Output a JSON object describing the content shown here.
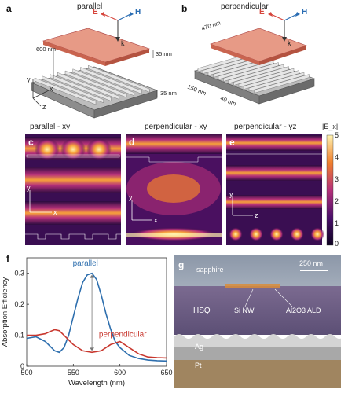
{
  "panels": {
    "a": {
      "label": "a",
      "title": "parallel",
      "dim_600": "600 nm",
      "dim_35_top": "35 nm",
      "dim_35_bottom": "35 nm",
      "axes": [
        "y",
        "x",
        "z"
      ]
    },
    "b": {
      "label": "b",
      "title": "perpendicular",
      "dim_470": "470 nm",
      "dim_150": "150 nm",
      "dim_40": "40 nm"
    },
    "field_e": "E",
    "field_h": "H",
    "field_k_a": "k",
    "field_k_b": "k",
    "c": {
      "label": "c",
      "title": "parallel - xy",
      "axis_y": "y",
      "axis_x": "x"
    },
    "d": {
      "label": "d",
      "title": "perpendicular - xy",
      "axis_y": "y",
      "axis_x": "x"
    },
    "e": {
      "label": "e",
      "title": "perpendicular - yz",
      "axis_y": "y",
      "axis_z": "z"
    },
    "colorbar": {
      "label": "|E_x|",
      "ticks": [
        "5",
        "4",
        "3",
        "2",
        "1",
        "0"
      ]
    },
    "f": {
      "label": "f"
    },
    "g": {
      "label": "g",
      "sapphire": "sapphire",
      "scalebar": "250 nm",
      "hsq": "HSQ",
      "si_nw": "Si NW",
      "ald": "Al2O3 ALD",
      "ag": "Ag",
      "pt": "Pt"
    }
  },
  "colors": {
    "accent_red": "#d6453c",
    "accent_blue": "#2a6db3",
    "line_parallel": "#2e6fae",
    "line_perp": "#c8372e"
  },
  "chart_data": {
    "type": "line",
    "xlabel": "Wavelength (nm)",
    "ylabel": "Absorption Efficiency",
    "xlim": [
      500,
      650
    ],
    "ylim": [
      0,
      0.35
    ],
    "xticks": [
      500,
      550,
      600,
      650
    ],
    "yticks": [
      0,
      0.1,
      0.2,
      0.3
    ],
    "series": [
      {
        "name": "parallel",
        "x": [
          500,
          510,
          520,
          530,
          535,
          540,
          545,
          550,
          555,
          560,
          565,
          570,
          575,
          580,
          585,
          590,
          595,
          600,
          610,
          620,
          630,
          640,
          650
        ],
        "y": [
          0.09,
          0.095,
          0.08,
          0.05,
          0.045,
          0.06,
          0.1,
          0.16,
          0.22,
          0.27,
          0.295,
          0.3,
          0.28,
          0.23,
          0.17,
          0.12,
          0.08,
          0.06,
          0.035,
          0.025,
          0.02,
          0.018,
          0.017
        ]
      },
      {
        "name": "perpendicular",
        "x": [
          500,
          510,
          520,
          525,
          530,
          535,
          540,
          550,
          560,
          570,
          580,
          590,
          600,
          610,
          620,
          630,
          640,
          650
        ],
        "y": [
          0.1,
          0.1,
          0.105,
          0.112,
          0.118,
          0.115,
          0.1,
          0.07,
          0.05,
          0.045,
          0.05,
          0.07,
          0.08,
          0.06,
          0.04,
          0.03,
          0.028,
          0.027
        ]
      }
    ]
  }
}
